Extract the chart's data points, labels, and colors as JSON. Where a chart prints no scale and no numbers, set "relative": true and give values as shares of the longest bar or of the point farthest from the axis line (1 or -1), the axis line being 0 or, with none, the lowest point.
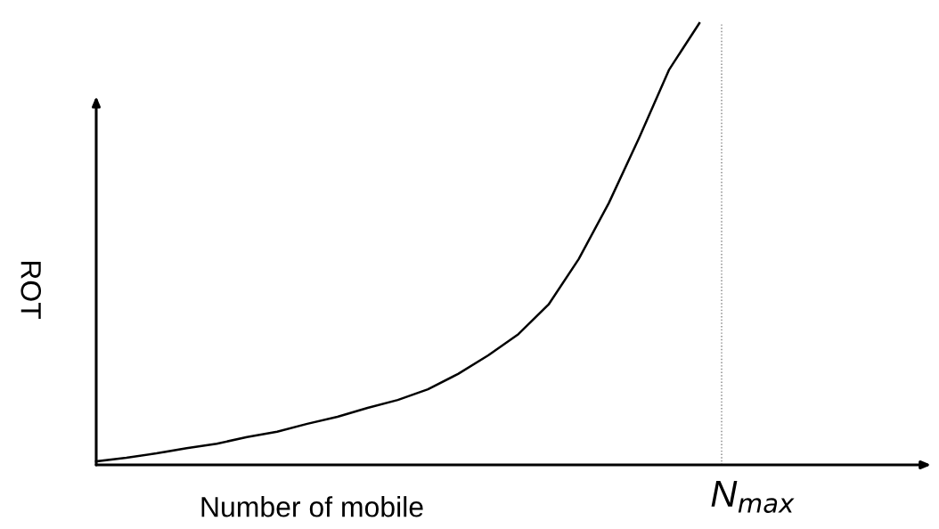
{
  "chart_data": {
    "type": "line",
    "relative": true,
    "xlabel": "Number of mobile",
    "ylabel": "ROT",
    "categories": [
      null,
      null,
      null,
      null,
      null,
      null,
      null,
      null,
      null,
      null,
      null,
      null,
      null,
      null,
      null,
      null,
      null,
      null,
      null,
      null,
      null
    ],
    "series": [
      {
        "color": "#000000",
        "values": [
          0.008,
          0.016,
          0.026,
          0.038,
          0.048,
          0.063,
          0.075,
          0.093,
          0.109,
          0.129,
          0.147,
          0.171,
          0.206,
          0.248,
          0.296,
          0.363,
          0.466,
          0.593,
          0.74,
          0.895,
          1
        ]
      }
    ],
    "annotations": [
      "N$_{max}$"
    ],
    "marker": "none",
    "line_style": "solid"
  }
}
